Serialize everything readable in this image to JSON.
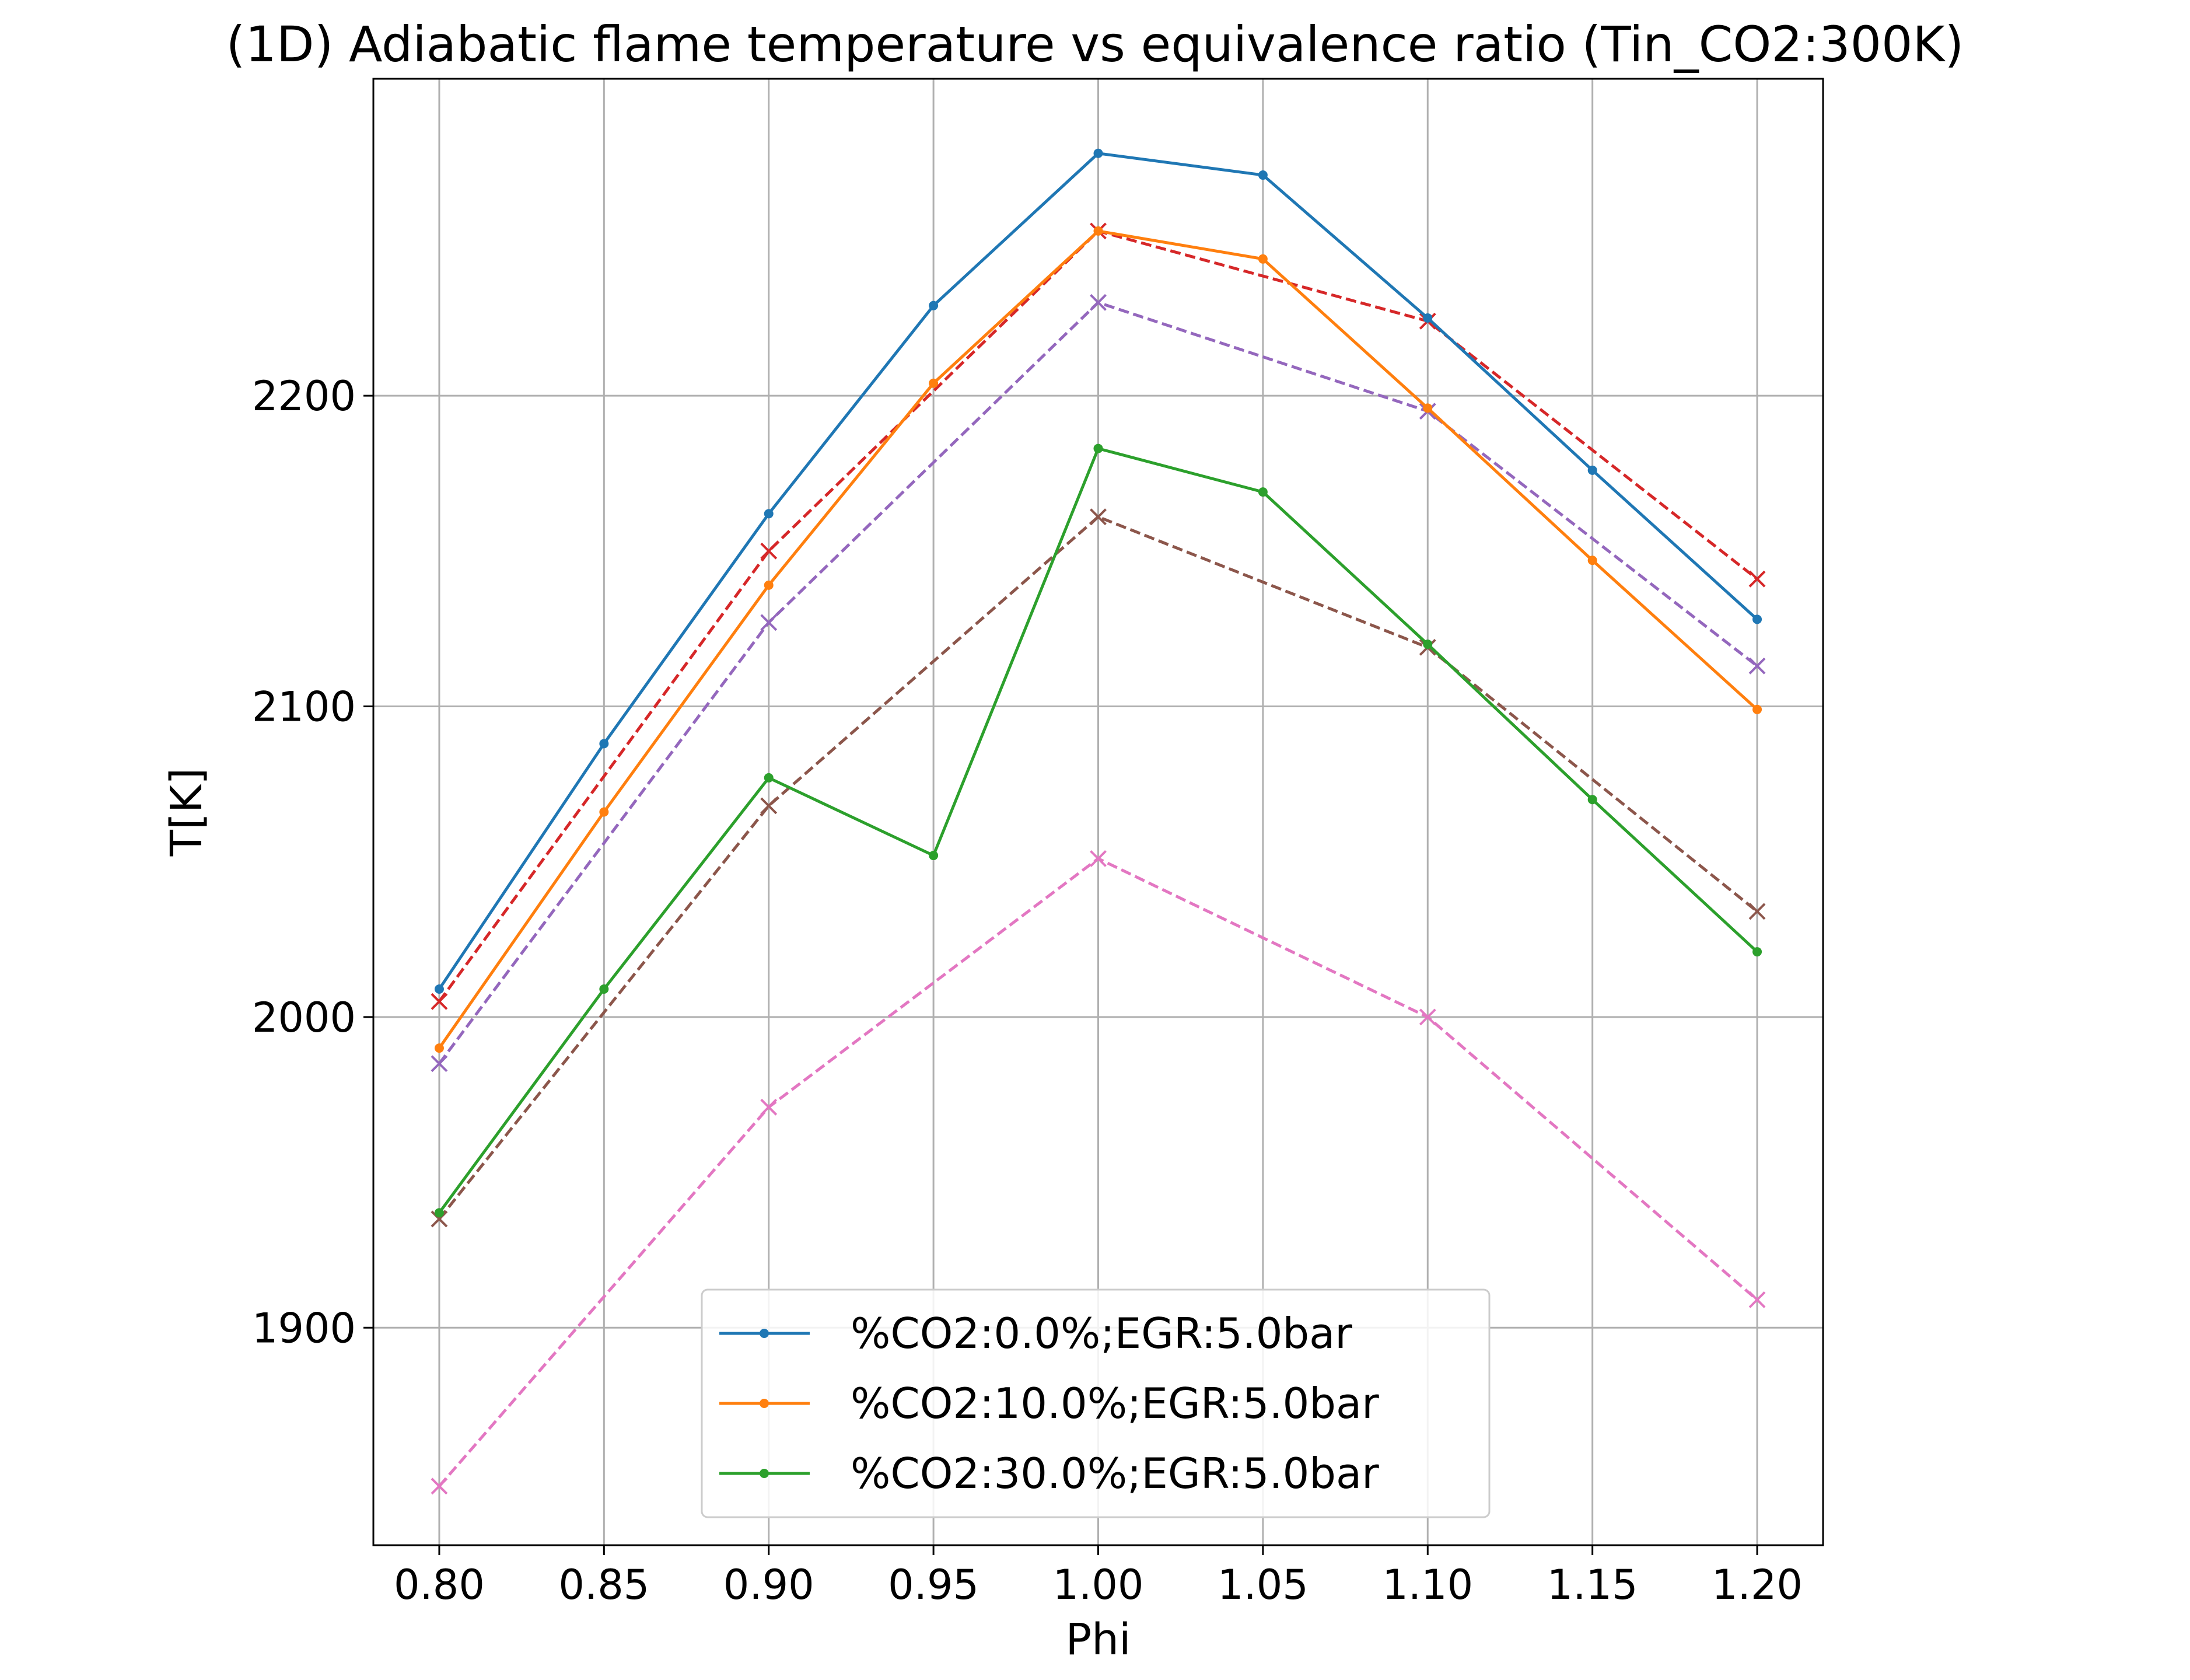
{
  "chart_data": {
    "type": "line",
    "title": "(1D) Adiabatic flame temperature vs equivalence ratio (Tin_CO2:300K)",
    "xlabel": "Phi",
    "ylabel": "T[K]",
    "xlim": [
      0.78,
      1.22
    ],
    "ylim": [
      1830,
      2302
    ],
    "x_ticks": [
      "0.80",
      "0.85",
      "0.90",
      "0.95",
      "1.00",
      "1.05",
      "1.10",
      "1.15",
      "1.20"
    ],
    "y_ticks": [
      "1900",
      "2000",
      "2100",
      "2200"
    ],
    "grid": true,
    "legend_position": "lower-center",
    "series": [
      {
        "name": "%CO2:0.0%;EGR:5.0bar",
        "color": "#1f77b4",
        "style": "solid",
        "marker": "dot",
        "x": [
          0.8,
          0.85,
          0.9,
          0.95,
          1.0,
          1.05,
          1.1,
          1.15,
          1.2
        ],
        "y": [
          2009,
          2088,
          2162,
          2229,
          2278,
          2271,
          2225,
          2176,
          2128
        ]
      },
      {
        "name": "%CO2:10.0%;EGR:5.0bar",
        "color": "#ff7f0e",
        "style": "solid",
        "marker": "dot",
        "x": [
          0.8,
          0.85,
          0.9,
          0.95,
          1.0,
          1.05,
          1.1,
          1.15,
          1.2
        ],
        "y": [
          1990,
          2066,
          2139,
          2204,
          2253,
          2244,
          2196,
          2147,
          2099
        ]
      },
      {
        "name": "%CO2:30.0%;EGR:5.0bar",
        "color": "#2ca02c",
        "style": "solid",
        "marker": "dot",
        "x": [
          0.8,
          0.85,
          0.9,
          0.95,
          1.0,
          1.05,
          1.1,
          1.15,
          1.2
        ],
        "y": [
          1937,
          2009,
          2077,
          2052,
          2183,
          2169,
          2120,
          2070,
          2021
        ]
      },
      {
        "color": "#d62728",
        "style": "dashed",
        "marker": "x",
        "x": [
          0.8,
          0.9,
          1.0,
          1.1,
          1.2
        ],
        "y": [
          2005,
          2150,
          2253,
          2224,
          2141
        ]
      },
      {
        "color": "#9467bd",
        "style": "dashed",
        "marker": "x",
        "x": [
          0.8,
          0.9,
          1.0,
          1.1,
          1.2
        ],
        "y": [
          1985,
          2127,
          2230,
          2195,
          2113
        ]
      },
      {
        "color": "#8c564b",
        "style": "dashed",
        "marker": "x",
        "x": [
          0.8,
          0.9,
          1.0,
          1.1,
          1.2
        ],
        "y": [
          1935,
          2068,
          2161,
          2119,
          2034
        ]
      },
      {
        "color": "#e377c2",
        "style": "dashed",
        "marker": "x",
        "x": [
          0.8,
          0.9,
          1.0,
          1.1,
          1.2
        ],
        "y": [
          1849,
          1971,
          2051,
          2000,
          1909
        ]
      }
    ]
  }
}
